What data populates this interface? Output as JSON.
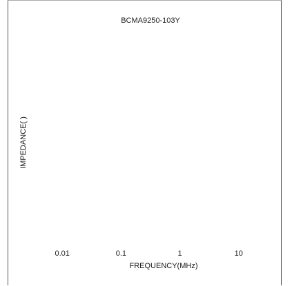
{
  "chart_data": {
    "type": "line",
    "title": "BCMA9250-103Y",
    "xlabel": "FREQUENCY(MHz)",
    "ylabel": "IMPEDANCE(  )",
    "x_scale": "log",
    "x_ticks": [
      0.01,
      0.1,
      1,
      10
    ],
    "x_tick_labels": [
      "0.01",
      "0.1",
      "1",
      "10"
    ],
    "xlim": [
      0.001,
      100
    ],
    "series": [],
    "grid": false,
    "colors": {
      "text": "#1a1a1a",
      "frame": "#555555",
      "background": "#ffffff"
    }
  }
}
